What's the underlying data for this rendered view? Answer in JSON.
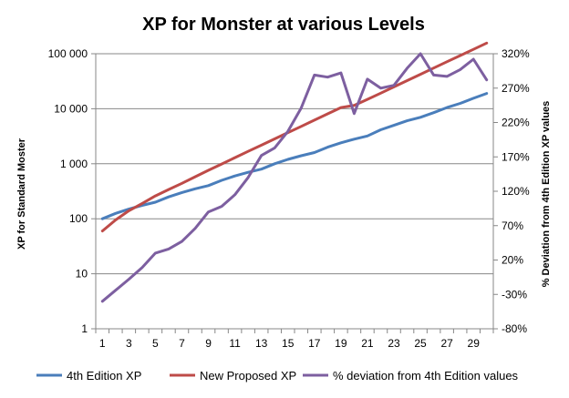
{
  "chart_data": {
    "type": "line",
    "title": "XP for Monster at various Levels",
    "ylabel": "XP for Standard Moster",
    "y2label": "% Deviation from 4th Edition XP values",
    "x": [
      1,
      2,
      3,
      4,
      5,
      6,
      7,
      8,
      9,
      10,
      11,
      12,
      13,
      14,
      15,
      16,
      17,
      18,
      19,
      20,
      21,
      22,
      23,
      24,
      25,
      26,
      27,
      28,
      29,
      30
    ],
    "x_ticks": [
      1,
      3,
      5,
      7,
      9,
      11,
      13,
      15,
      17,
      19,
      21,
      23,
      25,
      27,
      29
    ],
    "y_scale": "log",
    "ylim": [
      1,
      100000
    ],
    "y_ticks": [
      1,
      10,
      100,
      1000,
      10000,
      100000
    ],
    "y_tick_labels": [
      "1",
      "10",
      "100",
      "1 000",
      "10 000",
      "100 000"
    ],
    "y2lim": [
      -80,
      320
    ],
    "y2_ticks": [
      -80,
      -30,
      20,
      70,
      120,
      170,
      220,
      270,
      320
    ],
    "y2_tick_labels": [
      "-80%",
      "-30%",
      "20%",
      "70%",
      "120%",
      "170%",
      "220%",
      "270%",
      "320%"
    ],
    "grid": true,
    "legend_position": "bottom",
    "series": [
      {
        "name": "4th Edition XP",
        "axis": "left",
        "color": "#4a7ebb",
        "values": [
          100,
          125,
          150,
          175,
          200,
          250,
          300,
          350,
          400,
          500,
          600,
          700,
          800,
          1000,
          1200,
          1400,
          1600,
          2000,
          2400,
          2800,
          3200,
          4150,
          5000,
          6050,
          7000,
          8500,
          10500,
          12500,
          15500,
          19000
        ]
      },
      {
        "name": "New Proposed XP",
        "axis": "left",
        "color": "#be4b48",
        "values": [
          60,
          95,
          140,
          190,
          260,
          340,
          440,
          580,
          760,
          990,
          1290,
          1680,
          2180,
          2830,
          3680,
          4780,
          6220,
          8090,
          10500,
          11500,
          14800,
          19200,
          25000,
          32500,
          42200,
          54900,
          71400,
          92800,
          120000,
          156000
        ]
      },
      {
        "name": "% deviation from 4th Edition values",
        "axis": "right",
        "color": "#7d5fa0",
        "values": [
          -40,
          -24,
          -8,
          9,
          30,
          36,
          47,
          66,
          90,
          98,
          115,
          140,
          172,
          183,
          207,
          241,
          289,
          286,
          292,
          233,
          283,
          270,
          274,
          299,
          320,
          289,
          287,
          297,
          312,
          282
        ]
      }
    ]
  }
}
